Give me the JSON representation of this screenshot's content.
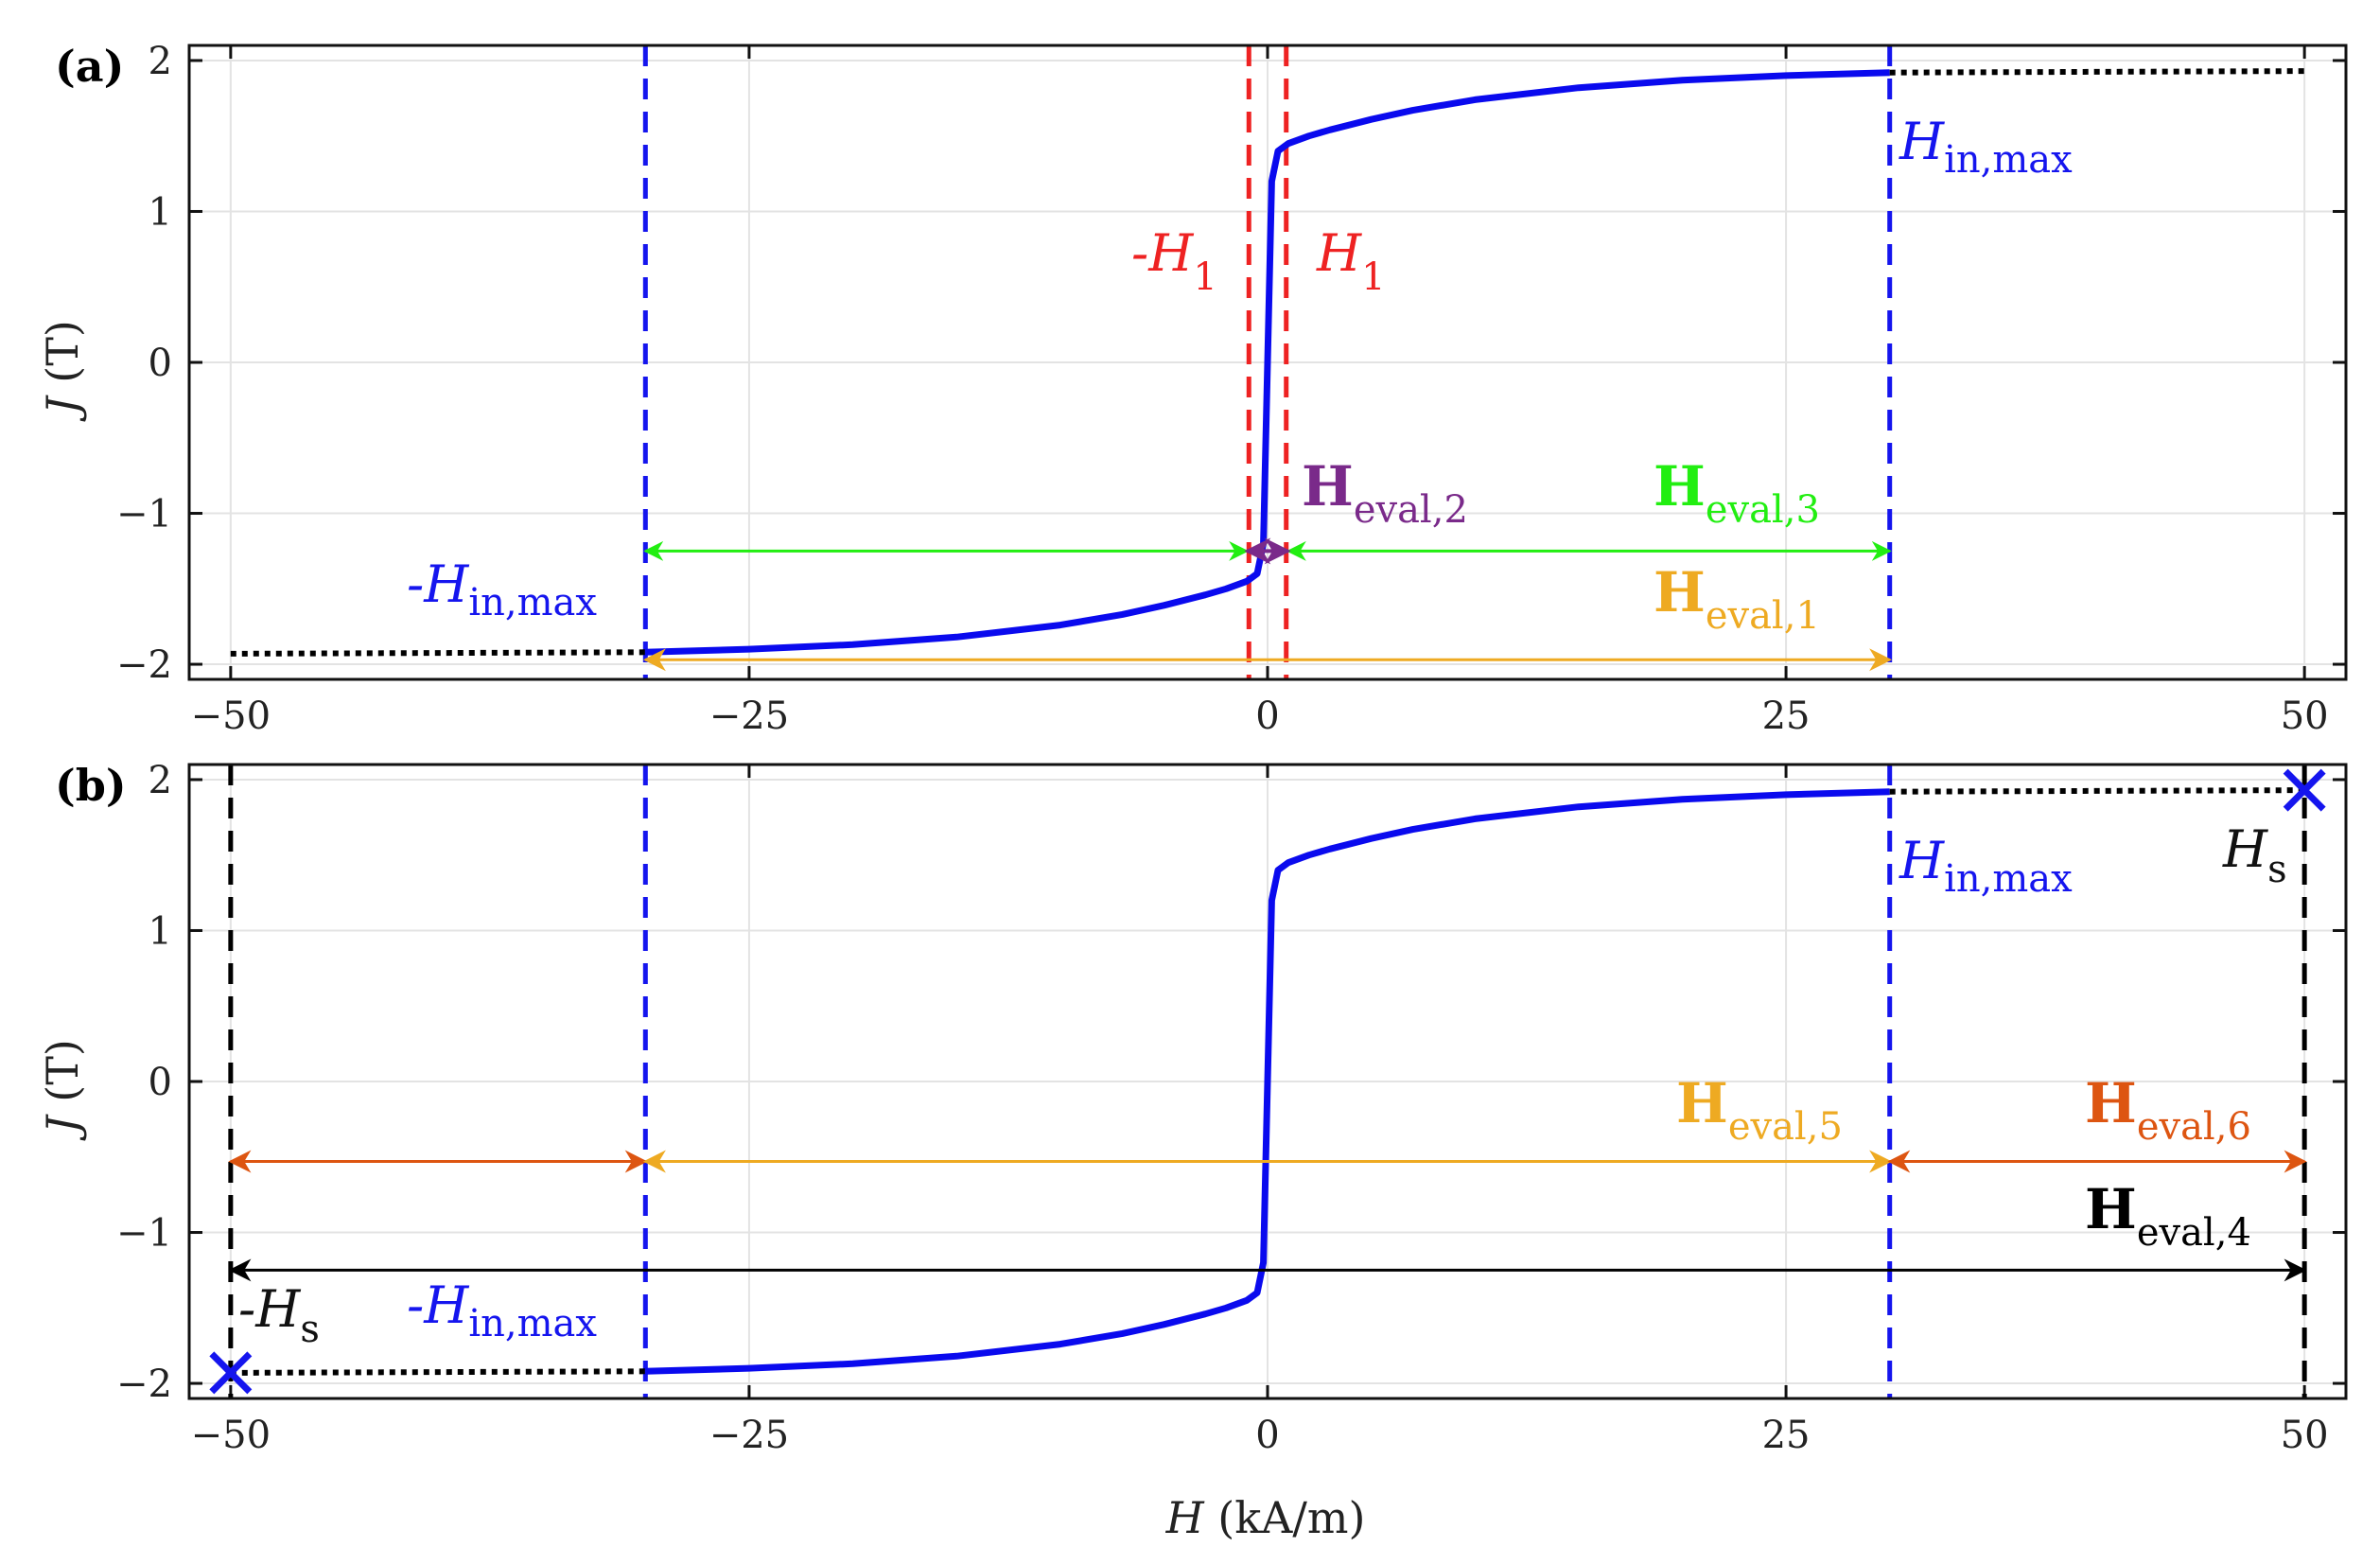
{
  "colors": {
    "curve": "#0a0aee",
    "blue": "#1515ee",
    "red": "#ee2222",
    "green": "#22ee11",
    "purple": "#7a2a8a",
    "orange": "#eeaa22",
    "darkorange": "#dd5511",
    "black": "#000000",
    "grid": "#e3e3e3"
  },
  "chart_data": [
    {
      "panel": "(a)",
      "type": "line",
      "xlabel": "",
      "ylabel_var": "J",
      "ylabel_unit": " (T)",
      "xlim": [
        -52,
        52
      ],
      "ylim": [
        -2.1,
        2.1
      ],
      "xticks": [
        -50,
        -25,
        0,
        25,
        50
      ],
      "xtick_labels": [
        "−50",
        "−25",
        "0",
        "25",
        "50"
      ],
      "yticks": [
        -2,
        -1,
        0,
        1,
        2
      ],
      "ytick_labels": [
        "−2",
        "−1",
        "0",
        "1",
        "2"
      ],
      "grid": true,
      "series": [
        {
          "name": "J(H) curve",
          "style": "solid",
          "x": [
            -30,
            -25,
            -20,
            -15,
            -10,
            -7,
            -5,
            -3,
            -2,
            -1,
            -0.5,
            -0.2,
            0,
            0.2,
            0.5,
            1,
            2,
            3,
            5,
            7,
            10,
            15,
            20,
            25,
            30
          ],
          "y": [
            -1.92,
            -1.9,
            -1.87,
            -1.82,
            -1.74,
            -1.67,
            -1.61,
            -1.54,
            -1.5,
            -1.45,
            -1.4,
            -1.2,
            0.0,
            1.2,
            1.4,
            1.45,
            1.5,
            1.54,
            1.61,
            1.67,
            1.74,
            1.82,
            1.87,
            1.9,
            1.92
          ]
        },
        {
          "name": "extension left",
          "style": "dotted",
          "x": [
            -50,
            -30
          ],
          "y": [
            -1.93,
            -1.92
          ]
        },
        {
          "name": "extension right",
          "style": "dotted",
          "x": [
            30,
            50
          ],
          "y": [
            1.92,
            1.93
          ]
        }
      ],
      "vlines": [
        {
          "x": -30,
          "color": "blue"
        },
        {
          "x": 30,
          "color": "blue"
        },
        {
          "x": -0.9,
          "color": "red"
        },
        {
          "x": 0.9,
          "color": "red"
        }
      ],
      "arrows": [
        {
          "name": "Heval3-left",
          "x1": -30,
          "x2": -1,
          "y": -1.25,
          "color": "green"
        },
        {
          "name": "Heval3-right",
          "x1": 1,
          "x2": 30,
          "y": -1.25,
          "color": "green"
        },
        {
          "name": "Heval2",
          "x1": -1,
          "x2": 1,
          "y": -1.25,
          "color": "purple"
        },
        {
          "name": "Heval1",
          "x1": -30,
          "x2": 30,
          "y": -1.97,
          "color": "orange"
        }
      ],
      "labels": {
        "h_in_max_pos": {
          "main": "H",
          "sub": "in,max"
        },
        "h_in_max_neg": {
          "pre": "-",
          "main": "H",
          "sub": "in,max"
        },
        "h1_neg": {
          "pre": "-",
          "main": "H",
          "sub": "1"
        },
        "h1_pos": {
          "main": "H",
          "sub": "1"
        },
        "heval2": {
          "main": "H",
          "sub": "eval,2"
        },
        "heval3": {
          "main": "H",
          "sub": "eval,3"
        },
        "heval1": {
          "main": "H",
          "sub": "eval,1"
        }
      }
    },
    {
      "panel": "(b)",
      "type": "line",
      "xlabel_var": "H",
      "xlabel_unit": " (kA/m)",
      "ylabel_var": "J",
      "ylabel_unit": " (T)",
      "xlim": [
        -52,
        52
      ],
      "ylim": [
        -2.1,
        2.1
      ],
      "xticks": [
        -50,
        -25,
        0,
        25,
        50
      ],
      "xtick_labels": [
        "−50",
        "−25",
        "0",
        "25",
        "50"
      ],
      "yticks": [
        -2,
        -1,
        0,
        1,
        2
      ],
      "ytick_labels": [
        "−2",
        "−1",
        "0",
        "1",
        "2"
      ],
      "grid": true,
      "series": [
        {
          "name": "J(H) curve",
          "style": "solid",
          "x": [
            -30,
            -25,
            -20,
            -15,
            -10,
            -7,
            -5,
            -3,
            -2,
            -1,
            -0.5,
            -0.2,
            0,
            0.2,
            0.5,
            1,
            2,
            3,
            5,
            7,
            10,
            15,
            20,
            25,
            30
          ],
          "y": [
            -1.92,
            -1.9,
            -1.87,
            -1.82,
            -1.74,
            -1.67,
            -1.61,
            -1.54,
            -1.5,
            -1.45,
            -1.4,
            -1.2,
            0.0,
            1.2,
            1.4,
            1.45,
            1.5,
            1.54,
            1.61,
            1.67,
            1.74,
            1.82,
            1.87,
            1.9,
            1.92
          ]
        },
        {
          "name": "extension left",
          "style": "dotted",
          "x": [
            -50,
            -30
          ],
          "y": [
            -1.93,
            -1.92
          ]
        },
        {
          "name": "extension right",
          "style": "dotted",
          "x": [
            30,
            50
          ],
          "y": [
            1.92,
            1.93
          ]
        }
      ],
      "vlines": [
        {
          "x": -30,
          "color": "blue"
        },
        {
          "x": 30,
          "color": "blue"
        },
        {
          "x": -50,
          "color": "black"
        },
        {
          "x": 50,
          "color": "black"
        }
      ],
      "markers": [
        {
          "name": "Hs-pos",
          "x": 50,
          "y": 1.93,
          "symbol": "x"
        },
        {
          "name": "Hs-neg",
          "x": -50,
          "y": -1.93,
          "symbol": "x"
        }
      ],
      "arrows": [
        {
          "name": "Heval6-left",
          "x1": -50,
          "x2": -30,
          "y": -0.53,
          "color": "darkorange"
        },
        {
          "name": "Heval5",
          "x1": -30,
          "x2": 30,
          "y": -0.53,
          "color": "orange"
        },
        {
          "name": "Heval6-right",
          "x1": 30,
          "x2": 50,
          "y": -0.53,
          "color": "darkorange"
        },
        {
          "name": "Heval4",
          "x1": -50,
          "x2": 50,
          "y": -1.25,
          "color": "black"
        }
      ],
      "labels": {
        "h_in_max_pos": {
          "main": "H",
          "sub": "in,max"
        },
        "h_in_max_neg": {
          "pre": "-",
          "main": "H",
          "sub": "in,max"
        },
        "hs_pos": {
          "main": "H",
          "sub": "s"
        },
        "hs_neg": {
          "pre": "-",
          "main": "H",
          "sub": "s"
        },
        "heval5": {
          "main": "H",
          "sub": "eval,5"
        },
        "heval6": {
          "main": "H",
          "sub": "eval,6"
        },
        "heval4": {
          "main": "H",
          "sub": "eval,4"
        }
      }
    }
  ]
}
